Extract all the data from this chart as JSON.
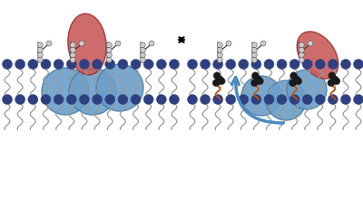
{
  "fig_width": 4.0,
  "fig_height": 2.19,
  "dpi": 100,
  "bg_color": "#ffffff",
  "blue_color": "#6b9fc9",
  "blue_edge": "#4a7fa8",
  "blue_light": "#85b5d8",
  "red_color": "#c95c5c",
  "red_edge": "#a03030",
  "dk_blue": "#2e4080",
  "lipid_tail": "#999999",
  "chol_dark": "#1a1a1a",
  "chol_orange": "#cc5500",
  "arrow_blue": "#4a8abf",
  "eq_arrow": "#111111"
}
